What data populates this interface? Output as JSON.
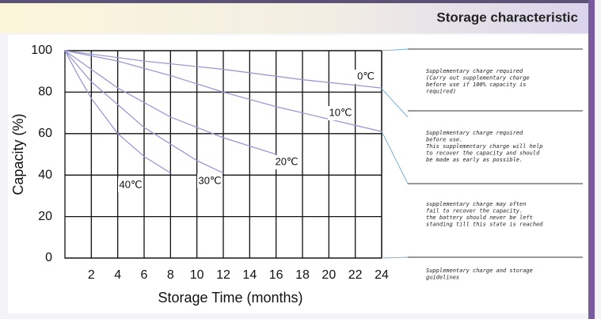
{
  "header": {
    "title": "Storage characteristic"
  },
  "chart_data": {
    "type": "line",
    "xlabel": "Storage Time (months)",
    "ylabel": "Capacity (%)",
    "xlim": [
      0,
      24
    ],
    "xticks": [
      2,
      4,
      6,
      8,
      10,
      12,
      14,
      16,
      18,
      20,
      22,
      24
    ],
    "ylim": [
      0,
      100
    ],
    "yticks": [
      0,
      20,
      40,
      60,
      80,
      100
    ],
    "grid": true,
    "series": [
      {
        "name": "0℃",
        "color": "#9a9ad2",
        "x": [
          0,
          6,
          12,
          18,
          24
        ],
        "values": [
          100,
          95,
          91,
          86,
          82
        ]
      },
      {
        "name": "10℃",
        "color": "#9a9ad2",
        "x": [
          0,
          4,
          8,
          12,
          16,
          20,
          24
        ],
        "values": [
          100,
          95,
          88,
          80,
          73,
          67,
          61
        ]
      },
      {
        "name": "20℃",
        "color": "#9a9ad2",
        "x": [
          0,
          4,
          8,
          12,
          16
        ],
        "values": [
          100,
          82,
          68,
          58,
          50
        ]
      },
      {
        "name": "30℃",
        "color": "#9a9ad2",
        "x": [
          0,
          2,
          4,
          6,
          8,
          10,
          12
        ],
        "values": [
          100,
          85,
          74,
          63,
          55,
          47,
          41
        ]
      },
      {
        "name": "40℃",
        "color": "#9a9ad2",
        "x": [
          0,
          1,
          2,
          4,
          6,
          8
        ],
        "values": [
          100,
          88,
          77,
          60,
          49,
          41
        ]
      }
    ]
  },
  "notes": [
    [
      "Supplementary charge required",
      "(Carry out supplementary charge",
      "before use if 100% capacity is",
      "required)"
    ],
    [
      "Supplementary charge required",
      "before use.",
      "This supplementary charge will help",
      "to recover the capacity and should",
      "be made  as early as possible."
    ],
    [
      "supplementary charge may often",
      "fail to recover the capacity.",
      "the battery should never be left",
      "standing till this state is reached"
    ],
    [
      "Supplementary charge and storage",
      "guidelines"
    ]
  ]
}
